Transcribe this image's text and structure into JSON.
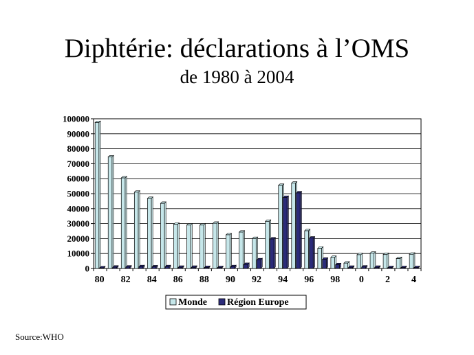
{
  "title": "Diphtérie: déclarations à l’OMS",
  "subtitle": "de 1980 à 2004",
  "source": "Source:WHO",
  "colors": {
    "monde": "#c6e7ea",
    "europe": "#2b2b7a",
    "outline": "#000000"
  },
  "chart_data": {
    "type": "bar",
    "title": "",
    "xlabel": "",
    "ylabel": "",
    "ylim": [
      0,
      100000
    ],
    "yticks": [
      "0",
      "10000",
      "20000",
      "30000",
      "40000",
      "50000",
      "60000",
      "70000",
      "80000",
      "90000",
      "100000"
    ],
    "x_tick_labels": [
      "80",
      "82",
      "84",
      "86",
      "88",
      "90",
      "92",
      "94",
      "96",
      "98",
      "0",
      "2",
      "4"
    ],
    "categories": [
      "80",
      "81",
      "82",
      "83",
      "84",
      "85",
      "86",
      "87",
      "88",
      "89",
      "90",
      "91",
      "92",
      "93",
      "94",
      "95",
      "96",
      "97",
      "98",
      "99",
      "0",
      "1",
      "2",
      "3",
      "4"
    ],
    "legend_position": "bottom",
    "grid": true,
    "series": [
      {
        "name": "Monde",
        "values": [
          97500,
          74500,
          60500,
          51000,
          46800,
          43500,
          29500,
          29000,
          29000,
          30200,
          22500,
          24300,
          20000,
          31500,
          55500,
          57000,
          25200,
          13500,
          7400,
          3600,
          9200,
          10200,
          9300,
          6600,
          9500
        ]
      },
      {
        "name": "Région Europe",
        "values": [
          400,
          900,
          1000,
          1200,
          1100,
          1200,
          800,
          800,
          700,
          600,
          1200,
          2700,
          5800,
          19700,
          47500,
          50500,
          20300,
          6200,
          2500,
          800,
          1000,
          800,
          600,
          600,
          600
        ]
      }
    ]
  }
}
